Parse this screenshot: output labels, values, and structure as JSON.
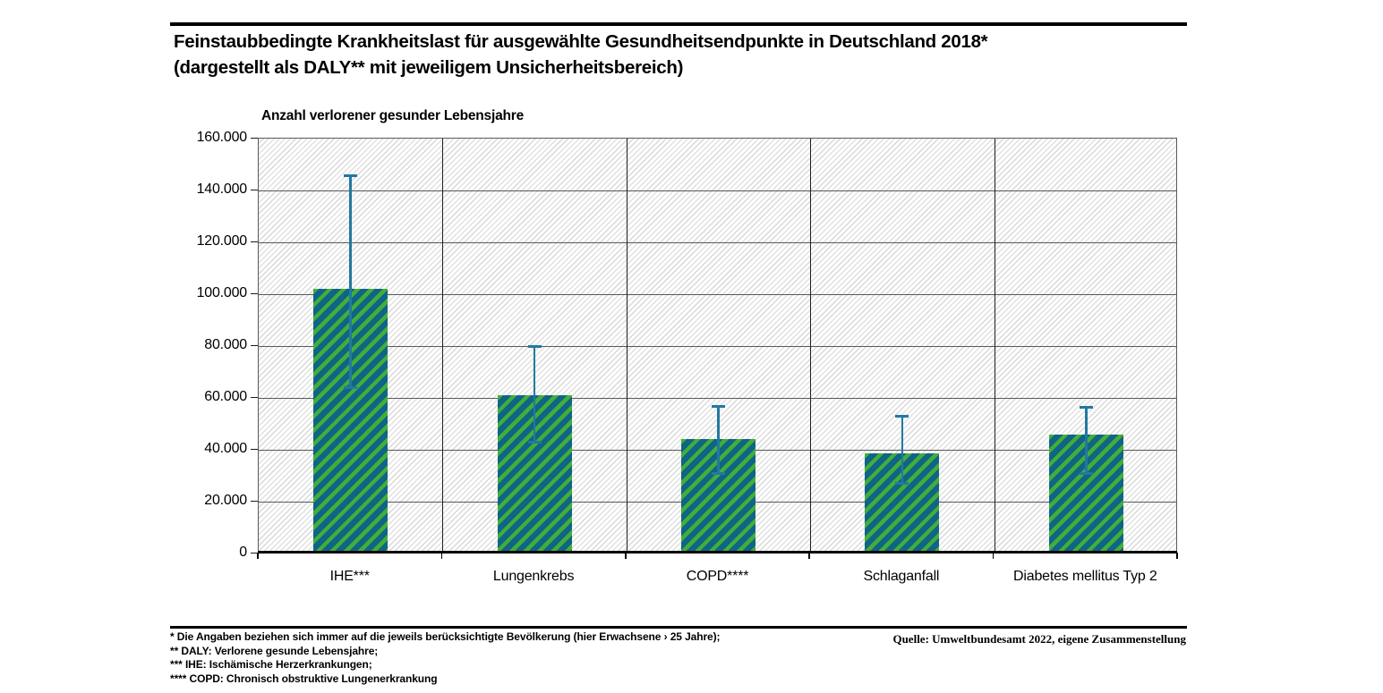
{
  "header": {
    "title_line1": "Feinstaubbedingte Krankheitslast für ausgewählte Gesundheitsendpunkte in Deutschland 2018*",
    "title_line2": "(dargestellt als DALY** mit jeweiligem Unsicherheitsbereich)"
  },
  "chart_data": {
    "type": "bar",
    "title": "Feinstaubbedingte Krankheitslast für ausgewählte Gesundheitsendpunkte in Deutschland 2018* (dargestellt als DALY** mit jeweiligem Unsicherheitsbereich)",
    "ylabel": "Anzahl verlorener gesunder Lebensjahre",
    "xlabel": "",
    "categories": [
      "IHE***",
      "Lungenkrebs",
      "COPD****",
      "Schlaganfall",
      "Diabetes mellitus Typ 2"
    ],
    "values": [
      101800,
      60800,
      43800,
      38300,
      45600
    ],
    "error_low": [
      64000,
      43000,
      31000,
      27000,
      31000
    ],
    "error_high": [
      146000,
      80000,
      57000,
      53000,
      56500
    ],
    "ylim": [
      0,
      160000
    ],
    "ytick_step": 20000,
    "ytick_labels": [
      "0",
      "20.000",
      "40.000",
      "60.000",
      "80.000",
      "100.000",
      "120.000",
      "140.000",
      "160.000"
    ],
    "grid": true,
    "legend_position": "none",
    "colors": {
      "bar_fill": "#0e6585",
      "bar_stripe": "#44ad3a",
      "error_bar": "#2279a0",
      "gridline": "#595959",
      "divider": "#1f1f1f",
      "hatch": "#d8d8d8",
      "axis": "#000000"
    }
  },
  "footnotes": {
    "lines": [
      "* Die Angaben beziehen sich immer auf die jeweils berücksichtigte Bevölkerung (hier Erwachsene › 25 Jahre);",
      "** DALY: Verlorene gesunde Lebensjahre;",
      "*** IHE: Ischämische Herzerkrankungen;",
      "**** COPD: Chronisch obstruktive Lungenerkrankung"
    ]
  },
  "source": {
    "text": "Quelle: Umweltbundesamt 2022, eigene Zusammenstellung"
  }
}
